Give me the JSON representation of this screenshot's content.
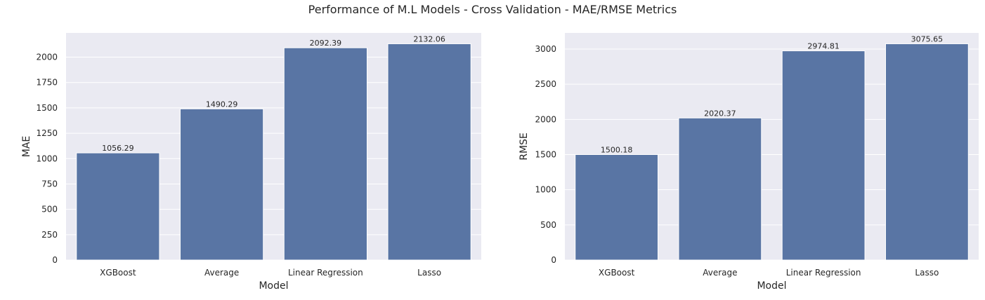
{
  "suptitle": "Performance of M.L Models - Cross Validation - MAE/RMSE Metrics",
  "colors": {
    "bar": "#5975a4",
    "axes_bg": "#eaeaf2",
    "grid": "#ffffff"
  },
  "chart_data": [
    {
      "type": "bar",
      "title": "",
      "xlabel": "Model",
      "ylabel": "MAE",
      "categories": [
        "XGBoost",
        "Average",
        "Linear Regression",
        "Lasso"
      ],
      "values": [
        1056.29,
        1490.29,
        2092.39,
        2132.06
      ],
      "data_labels": [
        "1056.29",
        "1490.29",
        "2092.39",
        "2132.06"
      ],
      "yticks": [
        0,
        250,
        500,
        750,
        1000,
        1250,
        1500,
        1750,
        2000
      ],
      "ylim": [
        0,
        2238.66
      ],
      "grid": true
    },
    {
      "type": "bar",
      "title": "",
      "xlabel": "Model",
      "ylabel": "RMSE",
      "categories": [
        "XGBoost",
        "Average",
        "Linear Regression",
        "Lasso"
      ],
      "values": [
        1500.18,
        2020.37,
        2974.81,
        3075.65
      ],
      "data_labels": [
        "1500.18",
        "2020.37",
        "2974.81",
        "3075.65"
      ],
      "yticks": [
        0,
        500,
        1000,
        1500,
        2000,
        2500,
        3000
      ],
      "ylim": [
        0,
        3229.43
      ],
      "grid": true
    }
  ]
}
